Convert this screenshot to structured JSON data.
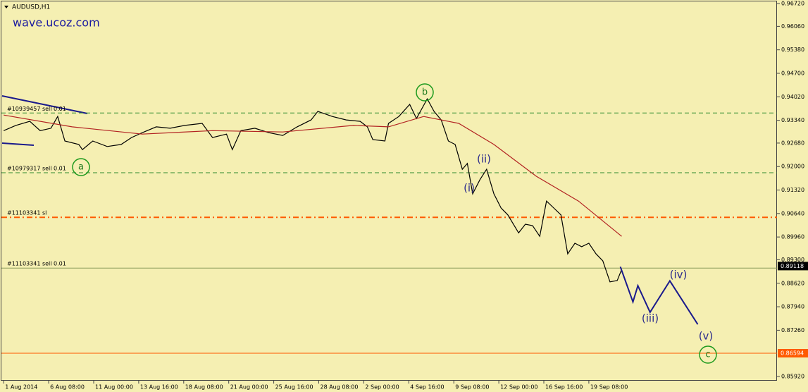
{
  "chart_data": {
    "type": "line",
    "title": "AUDUSD,H1",
    "watermark": "wave.ucoz.com",
    "xlim": [
      -0.05,
      17.18
    ],
    "ylim": [
      0.85798,
      0.96823
    ],
    "xticks": [
      {
        "value": 0,
        "label": "1 Aug 2014"
      },
      {
        "value": 1,
        "label": "6 Aug 08:00"
      },
      {
        "value": 2,
        "label": "11 Aug 00:00"
      },
      {
        "value": 3,
        "label": "13 Aug 16:00"
      },
      {
        "value": 4,
        "label": "18 Aug 08:00"
      },
      {
        "value": 5,
        "label": "21 Aug 00:00"
      },
      {
        "value": 6,
        "label": "25 Aug 16:00"
      },
      {
        "value": 7,
        "label": "28 Aug 08:00"
      },
      {
        "value": 8,
        "label": "2 Sep 00:00"
      },
      {
        "value": 9,
        "label": "4 Sep 16:00"
      },
      {
        "value": 10,
        "label": "9 Sep 08:00"
      },
      {
        "value": 11,
        "label": "12 Sep 00:00"
      },
      {
        "value": 12,
        "label": "16 Sep 16:00"
      },
      {
        "value": 13,
        "label": "19 Sep 08:00"
      }
    ],
    "yticks": [
      {
        "value": 0.9672,
        "label": "0.96720"
      },
      {
        "value": 0.9606,
        "label": "0.96060"
      },
      {
        "value": 0.9538,
        "label": "0.95380"
      },
      {
        "value": 0.947,
        "label": "0.94700"
      },
      {
        "value": 0.9402,
        "label": "0.94020"
      },
      {
        "value": 0.9334,
        "label": "0.93340"
      },
      {
        "value": 0.9268,
        "label": "0.92680"
      },
      {
        "value": 0.92,
        "label": "0.92000"
      },
      {
        "value": 0.9132,
        "label": "0.91320"
      },
      {
        "value": 0.9064,
        "label": "0.90640"
      },
      {
        "value": 0.8996,
        "label": "0.89960"
      },
      {
        "value": 0.893,
        "label": "0.89300"
      },
      {
        "value": 0.8862,
        "label": "0.88620"
      },
      {
        "value": 0.8794,
        "label": "0.87940"
      },
      {
        "value": 0.8726,
        "label": "0.87260"
      },
      {
        "value": 0.8592,
        "label": "0.85920"
      }
    ],
    "series": [
      {
        "color": "#000000",
        "x": [
          0,
          0.27,
          0.58,
          0.81,
          1.05,
          1.2,
          1.36,
          1.67,
          1.75,
          1.98,
          2.3,
          2.61,
          2.84,
          3.08,
          3.39,
          3.7,
          4.02,
          4.41,
          4.64,
          4.95,
          5.08,
          5.27,
          5.58,
          5.89,
          6.2,
          6.52,
          6.83,
          6.98,
          7.3,
          7.61,
          7.92,
          8.08,
          8.2,
          8.47,
          8.55,
          8.78,
          9.02,
          9.17,
          9.41,
          9.56,
          9.72,
          9.88,
          10.03,
          10.19,
          10.3,
          10.42,
          10.58,
          10.73,
          10.89,
          11.05,
          11.2,
          11.44,
          11.59,
          11.75,
          11.91,
          12.06,
          12.22,
          12.38,
          12.53,
          12.69,
          12.84,
          13,
          13.16,
          13.31,
          13.47,
          13.63,
          13.73
        ],
        "values": [
          0.9304,
          0.9319,
          0.9331,
          0.9304,
          0.9311,
          0.9345,
          0.9274,
          0.9264,
          0.9249,
          0.9274,
          0.9258,
          0.9264,
          0.9284,
          0.9298,
          0.9315,
          0.9311,
          0.9319,
          0.9325,
          0.9284,
          0.9294,
          0.9249,
          0.9304,
          0.9311,
          0.9298,
          0.929,
          0.9315,
          0.9335,
          0.936,
          0.9345,
          0.9335,
          0.9331,
          0.9315,
          0.9278,
          0.9274,
          0.9325,
          0.9345,
          0.938,
          0.9339,
          0.9396,
          0.936,
          0.9335,
          0.9274,
          0.9264,
          0.9192,
          0.9209,
          0.9121,
          0.9162,
          0.9192,
          0.9121,
          0.908,
          0.906,
          0.9008,
          0.9033,
          0.9029,
          0.8998,
          0.91,
          0.908,
          0.906,
          0.8947,
          0.8978,
          0.8968,
          0.8978,
          0.8947,
          0.8927,
          0.8866,
          0.887,
          0.8902
        ]
      },
      {
        "color": "#b22222",
        "x": [
          0,
          1.52,
          3.08,
          4.64,
          6.2,
          7.77,
          8.55,
          9.33,
          10.11,
          10.89,
          11.83,
          12.77,
          13.73
        ],
        "values": [
          0.9349,
          0.9315,
          0.9294,
          0.9304,
          0.93,
          0.9319,
          0.9315,
          0.9345,
          0.9325,
          0.9264,
          0.9172,
          0.91,
          0.8998
        ]
      },
      {
        "color": "#1a1a8c",
        "x": [
          13.7,
          13.98,
          14.09,
          14.36,
          14.8,
          15.42
        ],
        "values": [
          0.891,
          0.8808,
          0.8855,
          0.8778,
          0.8869,
          0.8743
        ]
      }
    ],
    "levels": [
      {
        "label": "#10939457 sell 0.01",
        "value": 0.9355,
        "color": "#2e8b2e",
        "dash": "6 4"
      },
      {
        "label": "#10979317 sell 0.01",
        "value": 0.9182,
        "color": "#2e8b2e",
        "dash": "6 4"
      },
      {
        "label": "#11103341 sl",
        "value": 0.9053,
        "color": "#ff5a00",
        "dash": "8 4 2 4"
      },
      {
        "label": "#11103341 sell 0.01",
        "value": 0.8906,
        "color": "#8a9a5b",
        "dash": ""
      },
      {
        "value": 0.86594,
        "color": "#ff5a00",
        "dash": ""
      }
    ],
    "price_labels": [
      {
        "value": 0.89118,
        "color": "#000000"
      },
      {
        "value": 0.86594,
        "color": "#ff5a00"
      }
    ],
    "annotations": [
      "b",
      "a",
      "(ii)",
      "(i)",
      "(iii)",
      "(iv)",
      "(v)",
      "c"
    ]
  }
}
